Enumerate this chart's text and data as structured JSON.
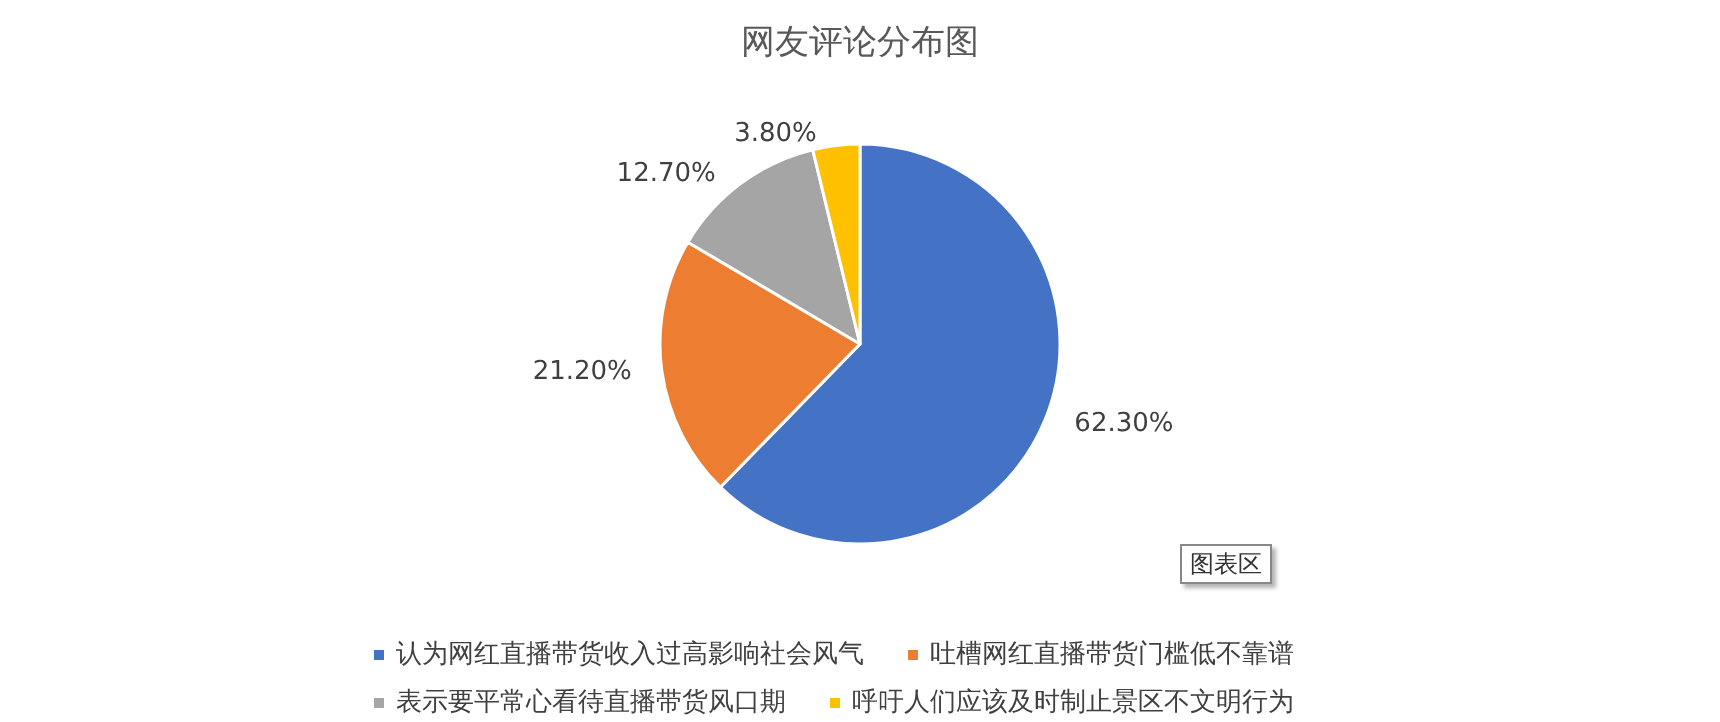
{
  "chart_data": {
    "type": "pie",
    "title": "网友评论分布图",
    "categories": [
      "认为网红直播带货收入过高影响社会风气",
      "吐槽网红直播带货门槛低不靠谱",
      "表示要平常心看待直播带货风口期",
      "呼吁人们应该及时制止景区不文明行为"
    ],
    "values": [
      62.3,
      21.2,
      12.7,
      3.8
    ],
    "value_labels": [
      "62.30%",
      "21.20%",
      "12.70%",
      "3.80%"
    ],
    "colors": [
      "#4472c4",
      "#ed7d31",
      "#a5a5a5",
      "#ffc000"
    ],
    "legend": "bottom",
    "annotations": [
      "图表区"
    ]
  }
}
